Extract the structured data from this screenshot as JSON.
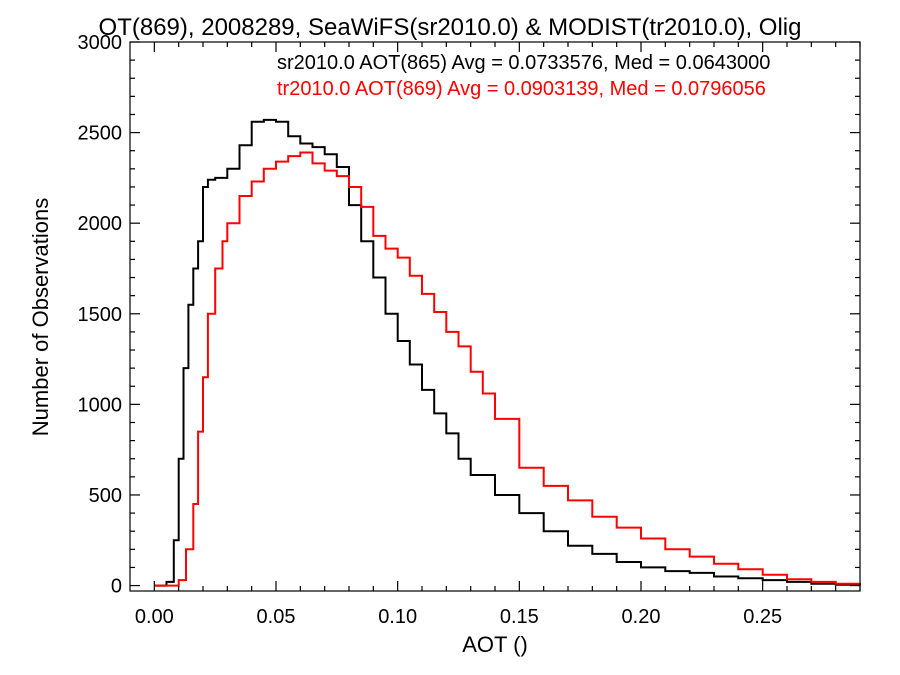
{
  "chart_data": {
    "type": "line",
    "title": "OT(869), 2008289, SeaWiFS(sr2010.0) & MODIST(tr2010.0), Olig",
    "xlabel": "AOT ()",
    "ylabel": "Number of Observations",
    "xlim": [
      -0.01,
      0.29
    ],
    "ylim": [
      -30,
      3000
    ],
    "x_ticks": [
      {
        "value": 0.0,
        "label": "0.00"
      },
      {
        "value": 0.05,
        "label": "0.05"
      },
      {
        "value": 0.1,
        "label": "0.10"
      },
      {
        "value": 0.15,
        "label": "0.15"
      },
      {
        "value": 0.2,
        "label": "0.20"
      },
      {
        "value": 0.25,
        "label": "0.25"
      }
    ],
    "y_ticks": [
      {
        "value": 0,
        "label": "0"
      },
      {
        "value": 500,
        "label": "500"
      },
      {
        "value": 1000,
        "label": "1000"
      },
      {
        "value": 1500,
        "label": "1500"
      },
      {
        "value": 2000,
        "label": "2000"
      },
      {
        "value": 2500,
        "label": "2500"
      },
      {
        "value": 3000,
        "label": "3000"
      }
    ],
    "grid": false,
    "legend_position": "top-right",
    "series": [
      {
        "name": "sr2010.0 AOT(865) Avg = 0.0733576, Med = 0.0643000",
        "color": "#000000",
        "step": "histogram",
        "x": [
          0.0,
          0.005,
          0.008,
          0.01,
          0.012,
          0.014,
          0.016,
          0.018,
          0.02,
          0.022,
          0.025,
          0.03,
          0.035,
          0.04,
          0.045,
          0.05,
          0.055,
          0.06,
          0.065,
          0.07,
          0.075,
          0.08,
          0.085,
          0.09,
          0.095,
          0.1,
          0.105,
          0.11,
          0.115,
          0.12,
          0.125,
          0.13,
          0.14,
          0.15,
          0.16,
          0.17,
          0.18,
          0.19,
          0.2,
          0.21,
          0.22,
          0.23,
          0.24,
          0.25,
          0.26,
          0.27,
          0.28,
          0.29
        ],
        "y": [
          0,
          20,
          250,
          700,
          1200,
          1550,
          1750,
          1900,
          2200,
          2240,
          2250,
          2300,
          2430,
          2560,
          2570,
          2560,
          2480,
          2440,
          2420,
          2380,
          2310,
          2100,
          1900,
          1700,
          1500,
          1350,
          1220,
          1080,
          950,
          840,
          700,
          610,
          500,
          400,
          300,
          220,
          175,
          130,
          100,
          80,
          70,
          50,
          40,
          30,
          20,
          10,
          5,
          0
        ]
      },
      {
        "name": "tr2010.0 AOT(869) Avg = 0.0903139, Med = 0.0796056",
        "color": "#ff0000",
        "step": "histogram",
        "x": [
          0.0,
          0.01,
          0.013,
          0.016,
          0.018,
          0.02,
          0.022,
          0.025,
          0.028,
          0.03,
          0.035,
          0.04,
          0.045,
          0.05,
          0.055,
          0.06,
          0.065,
          0.07,
          0.075,
          0.08,
          0.085,
          0.09,
          0.095,
          0.1,
          0.105,
          0.11,
          0.115,
          0.12,
          0.125,
          0.13,
          0.135,
          0.14,
          0.15,
          0.16,
          0.17,
          0.18,
          0.19,
          0.2,
          0.21,
          0.22,
          0.23,
          0.24,
          0.25,
          0.26,
          0.27,
          0.28,
          0.29
        ],
        "y": [
          0,
          30,
          200,
          450,
          850,
          1150,
          1500,
          1750,
          1900,
          2000,
          2150,
          2230,
          2300,
          2340,
          2370,
          2390,
          2330,
          2290,
          2260,
          2200,
          2090,
          1930,
          1860,
          1810,
          1710,
          1610,
          1510,
          1400,
          1320,
          1180,
          1060,
          920,
          650,
          550,
          470,
          380,
          320,
          260,
          200,
          160,
          120,
          90,
          60,
          35,
          20,
          10,
          0
        ]
      }
    ]
  }
}
